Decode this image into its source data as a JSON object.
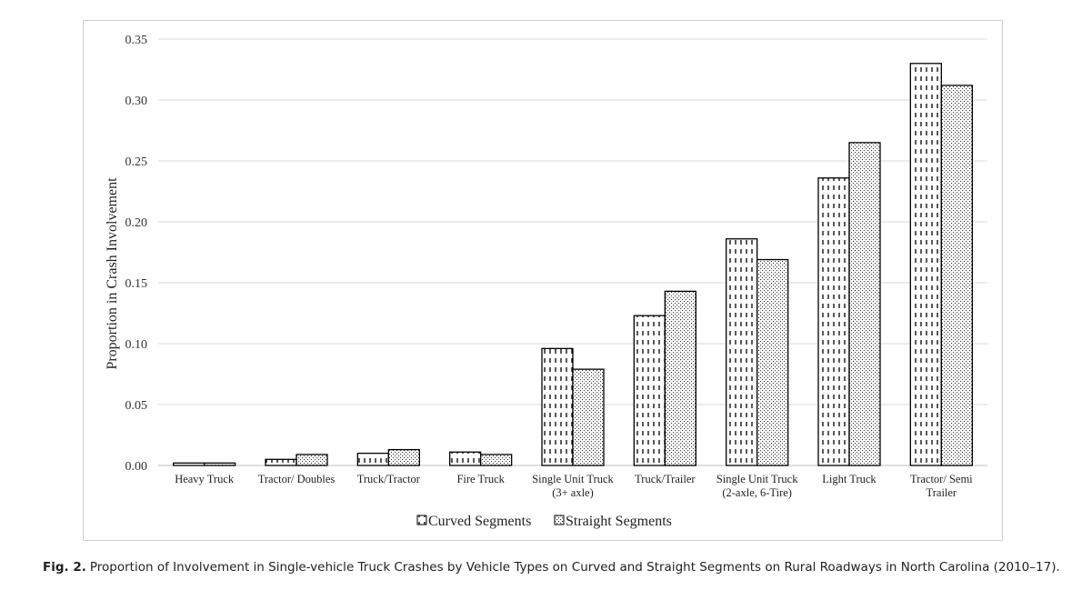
{
  "chart_data": {
    "type": "bar",
    "ylabel": "Proportion in Crash Involvement",
    "xlabel": "",
    "ylim": [
      0,
      0.35
    ],
    "yticks": [
      "0.00",
      "0.05",
      "0.10",
      "0.15",
      "0.20",
      "0.25",
      "0.30",
      "0.35"
    ],
    "grid": true,
    "legend_position": "bottom",
    "categories": [
      [
        "Heavy Truck"
      ],
      [
        "Tractor/ Doubles"
      ],
      [
        "Truck/Tractor"
      ],
      [
        "Fire Truck"
      ],
      [
        "Single Unit Truck",
        "(3+ axle)"
      ],
      [
        "Truck/Trailer"
      ],
      [
        "Single Unit Truck",
        "(2-axle, 6-Tire)"
      ],
      [
        "Light Truck"
      ],
      [
        "Tractor/ Semi",
        "Trailer"
      ]
    ],
    "series": [
      {
        "name": "Curved Segments",
        "pattern": "dashed-vertical",
        "values": [
          0.002,
          0.005,
          0.01,
          0.011,
          0.096,
          0.123,
          0.186,
          0.236,
          0.33
        ]
      },
      {
        "name": "Straight Segments",
        "pattern": "dotted",
        "values": [
          0.002,
          0.009,
          0.013,
          0.009,
          0.079,
          0.143,
          0.169,
          0.265,
          0.312
        ]
      }
    ],
    "colors": {
      "grid": "#d9d9d9",
      "bar_stroke": "#000000",
      "axis": "#bfbfbf"
    }
  },
  "caption": {
    "label": "Fig. 2.",
    "text": "Proportion of Involvement in Single-vehicle Truck Crashes by Vehicle Types on Curved and Straight Segments on Rural Roadways in North Carolina (2010–17)."
  }
}
